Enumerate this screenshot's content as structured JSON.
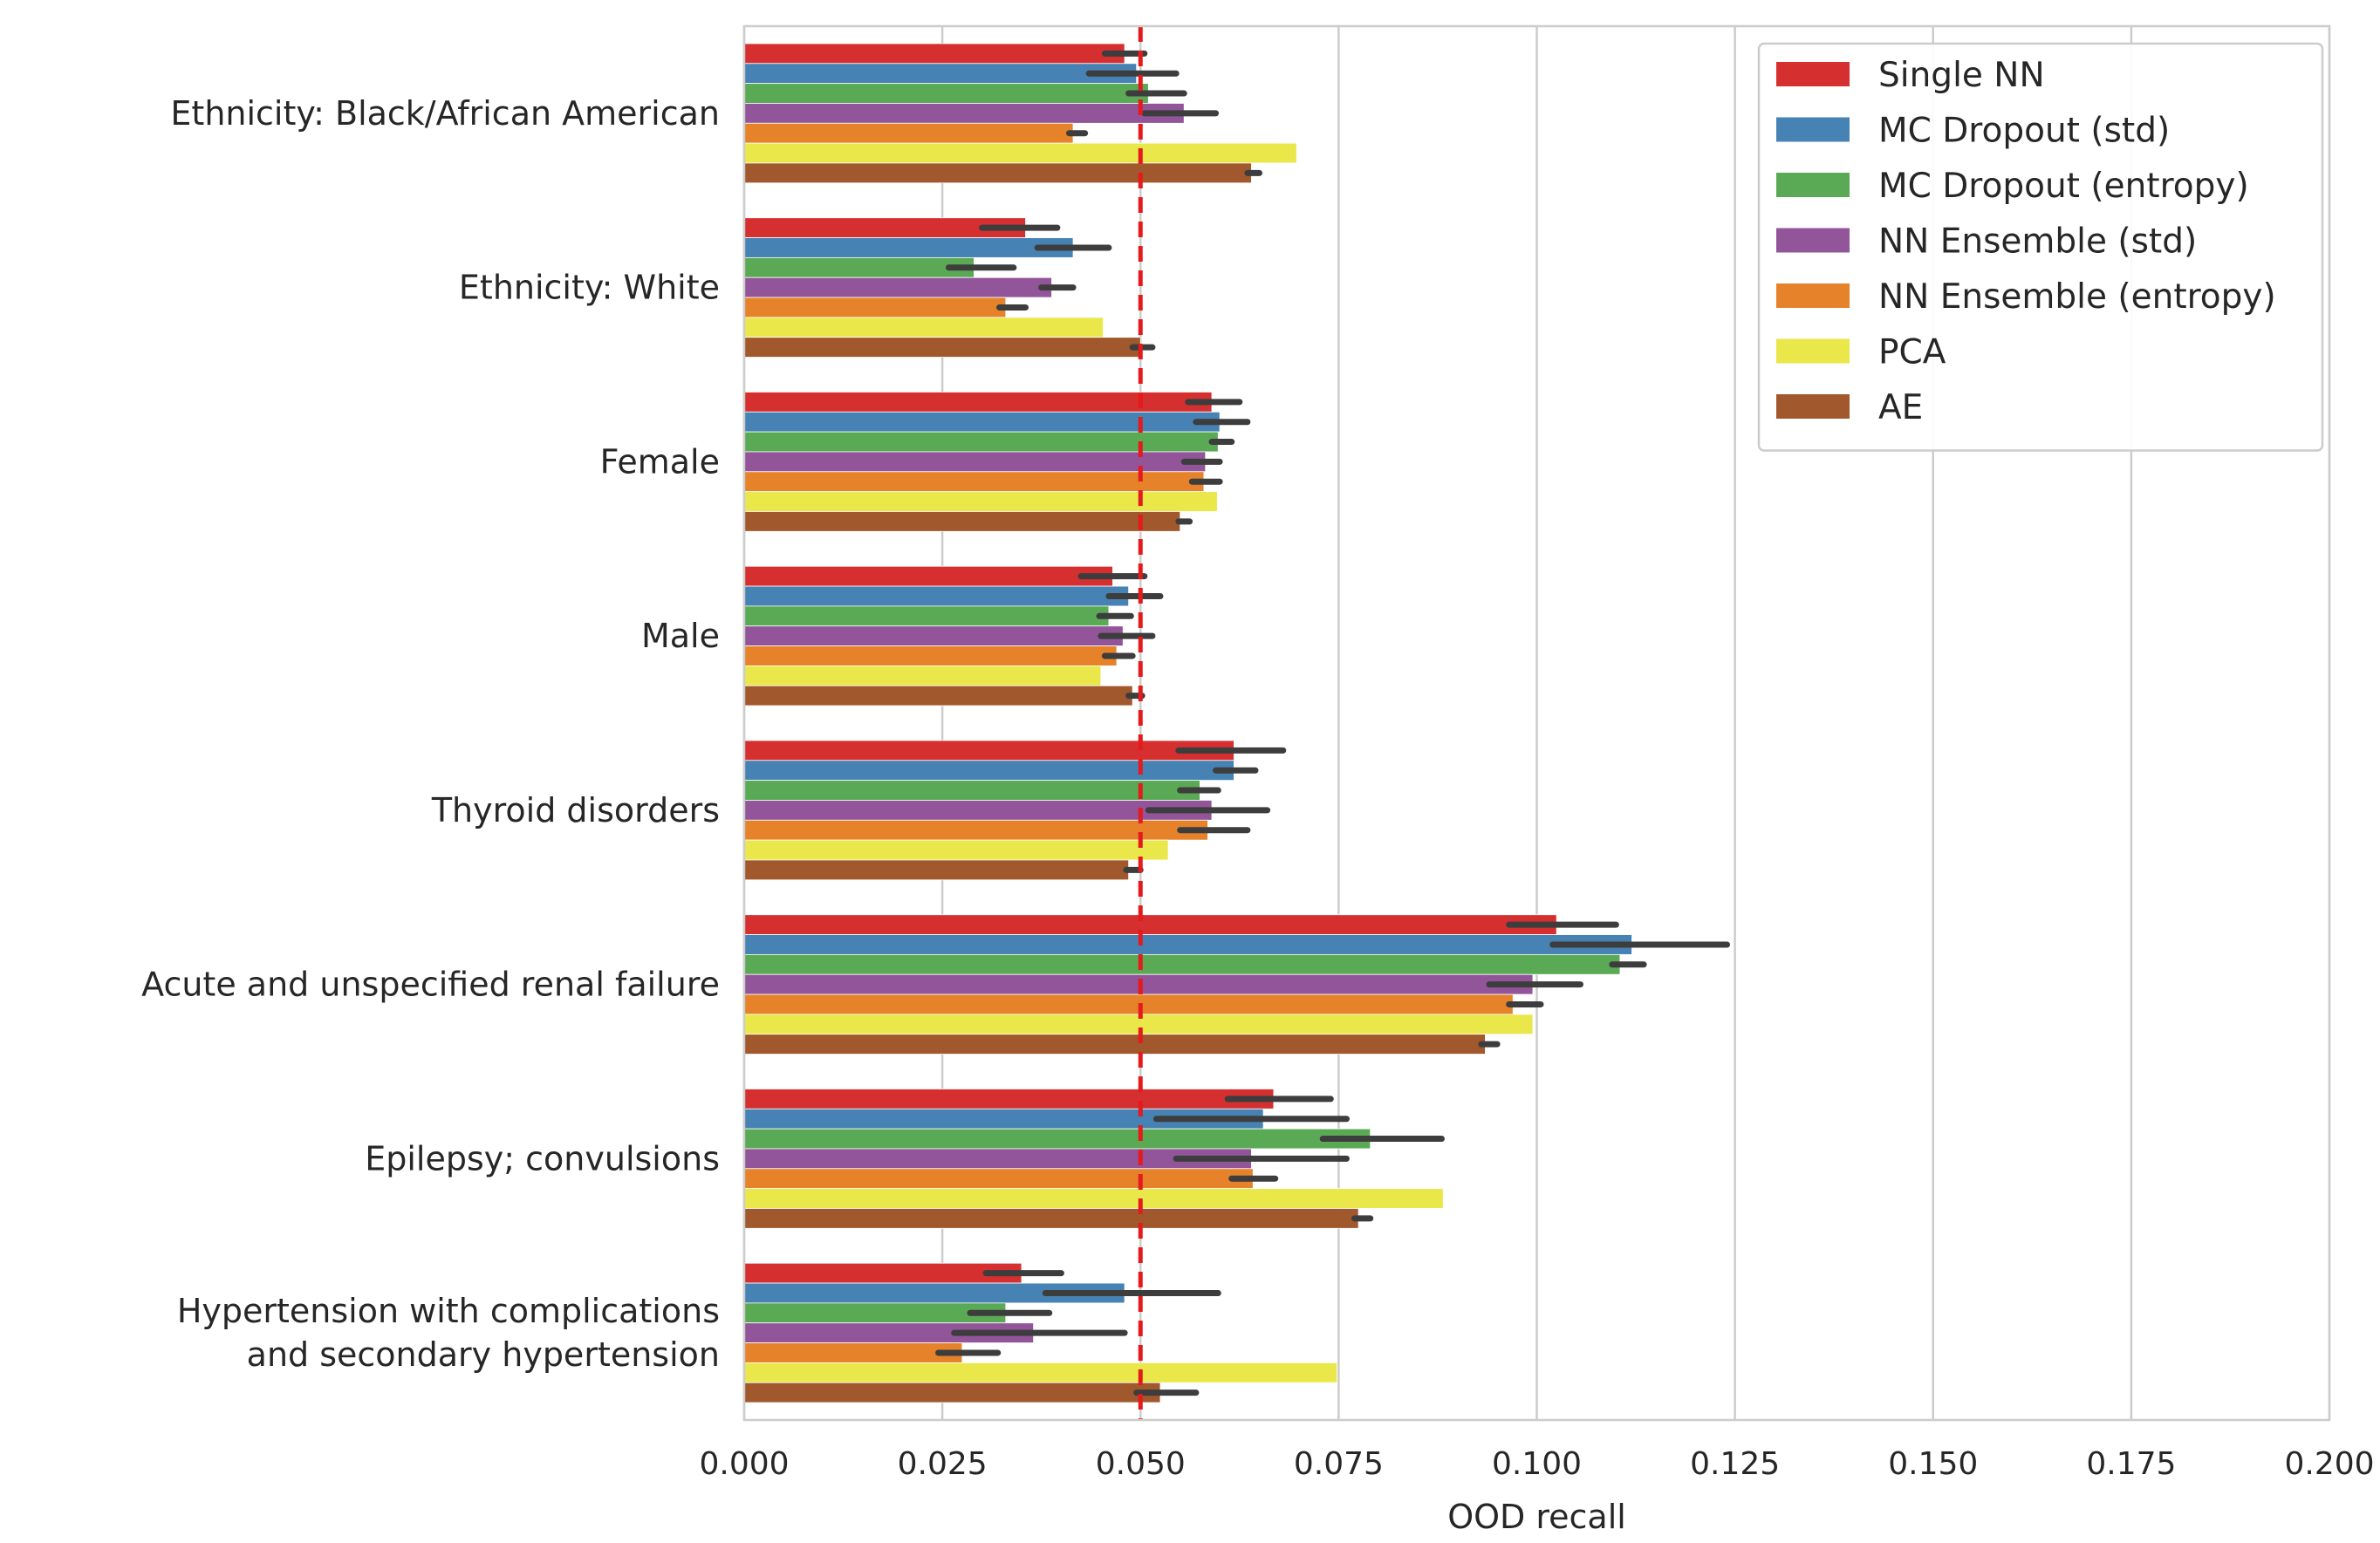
{
  "chart_data": {
    "type": "bar",
    "orientation": "horizontal",
    "xlabel": "OOD recall",
    "xlim": [
      0.0,
      0.2
    ],
    "xticks": [
      "0.000",
      "0.025",
      "0.050",
      "0.075",
      "0.100",
      "0.125",
      "0.150",
      "0.175",
      "0.200"
    ],
    "grid": "vertical",
    "legend_position": "top-right",
    "reference_line": {
      "value": 0.05,
      "style": "dashed",
      "color": "#e41a1c"
    },
    "categories": [
      [
        "Ethnicity: Black/African American"
      ],
      [
        "Ethnicity: White"
      ],
      [
        "Female"
      ],
      [
        "Male"
      ],
      [
        "Thyroid disorders"
      ],
      [
        "Acute and unspecified renal failure"
      ],
      [
        "Epilepsy; convulsions"
      ],
      [
        "Hypertension with complications",
        "and secondary hypertension"
      ]
    ],
    "series": [
      {
        "name": "Single NN",
        "color": "#d62f2f",
        "values": [
          0.048,
          0.0355,
          0.059,
          0.0465,
          0.0618,
          0.1025,
          0.0668,
          0.035
        ],
        "err_low": [
          0.0455,
          0.03,
          0.056,
          0.0425,
          0.0548,
          0.0965,
          0.061,
          0.0305
        ],
        "err_high": [
          0.0505,
          0.0395,
          0.0625,
          0.0505,
          0.068,
          0.11,
          0.074,
          0.04
        ]
      },
      {
        "name": "MC Dropout (std)",
        "color": "#4682b4",
        "values": [
          0.0495,
          0.0415,
          0.06,
          0.0485,
          0.0618,
          0.112,
          0.0655,
          0.048
        ],
        "err_low": [
          0.0435,
          0.037,
          0.057,
          0.046,
          0.0595,
          0.102,
          0.052,
          0.038
        ],
        "err_high": [
          0.0545,
          0.046,
          0.0635,
          0.0525,
          0.0645,
          0.124,
          0.076,
          0.0598
        ]
      },
      {
        "name": "MC Dropout (entropy)",
        "color": "#5aaa55",
        "values": [
          0.051,
          0.029,
          0.0598,
          0.046,
          0.0575,
          0.1105,
          0.079,
          0.033
        ],
        "err_low": [
          0.0485,
          0.0258,
          0.059,
          0.0448,
          0.055,
          0.1095,
          0.073,
          0.0285
        ],
        "err_high": [
          0.0555,
          0.034,
          0.0615,
          0.0488,
          0.0598,
          0.1135,
          0.088,
          0.0385
        ]
      },
      {
        "name": "NN Ensemble (std)",
        "color": "#92559a",
        "values": [
          0.0555,
          0.0388,
          0.0582,
          0.0478,
          0.059,
          0.0995,
          0.064,
          0.0365
        ],
        "err_low": [
          0.0505,
          0.0375,
          0.0555,
          0.045,
          0.051,
          0.094,
          0.0545,
          0.0265
        ],
        "err_high": [
          0.0595,
          0.0415,
          0.06,
          0.0515,
          0.066,
          0.1055,
          0.076,
          0.048
        ]
      },
      {
        "name": "NN Ensemble (entropy)",
        "color": "#e5822a",
        "values": [
          0.0415,
          0.033,
          0.058,
          0.047,
          0.0585,
          0.097,
          0.0642,
          0.0275
        ],
        "err_low": [
          0.041,
          0.0322,
          0.0565,
          0.0455,
          0.055,
          0.0965,
          0.0615,
          0.0245
        ],
        "err_high": [
          0.043,
          0.0355,
          0.06,
          0.049,
          0.0635,
          0.1005,
          0.067,
          0.032
        ]
      },
      {
        "name": "PCA",
        "color": "#e9e74a",
        "values": [
          0.0697,
          0.0453,
          0.0597,
          0.045,
          0.0535,
          0.0995,
          0.0882,
          0.0748
        ],
        "err_low": [],
        "err_high": []
      },
      {
        "name": "AE",
        "color": "#a0582c",
        "values": [
          0.064,
          0.05,
          0.055,
          0.049,
          0.0485,
          0.0935,
          0.0775,
          0.0525
        ],
        "err_low": [
          0.0635,
          0.049,
          0.0548,
          0.0485,
          0.0482,
          0.093,
          0.077,
          0.0495
        ],
        "err_high": [
          0.065,
          0.0515,
          0.0562,
          0.0502,
          0.05,
          0.095,
          0.079,
          0.057
        ]
      }
    ]
  }
}
